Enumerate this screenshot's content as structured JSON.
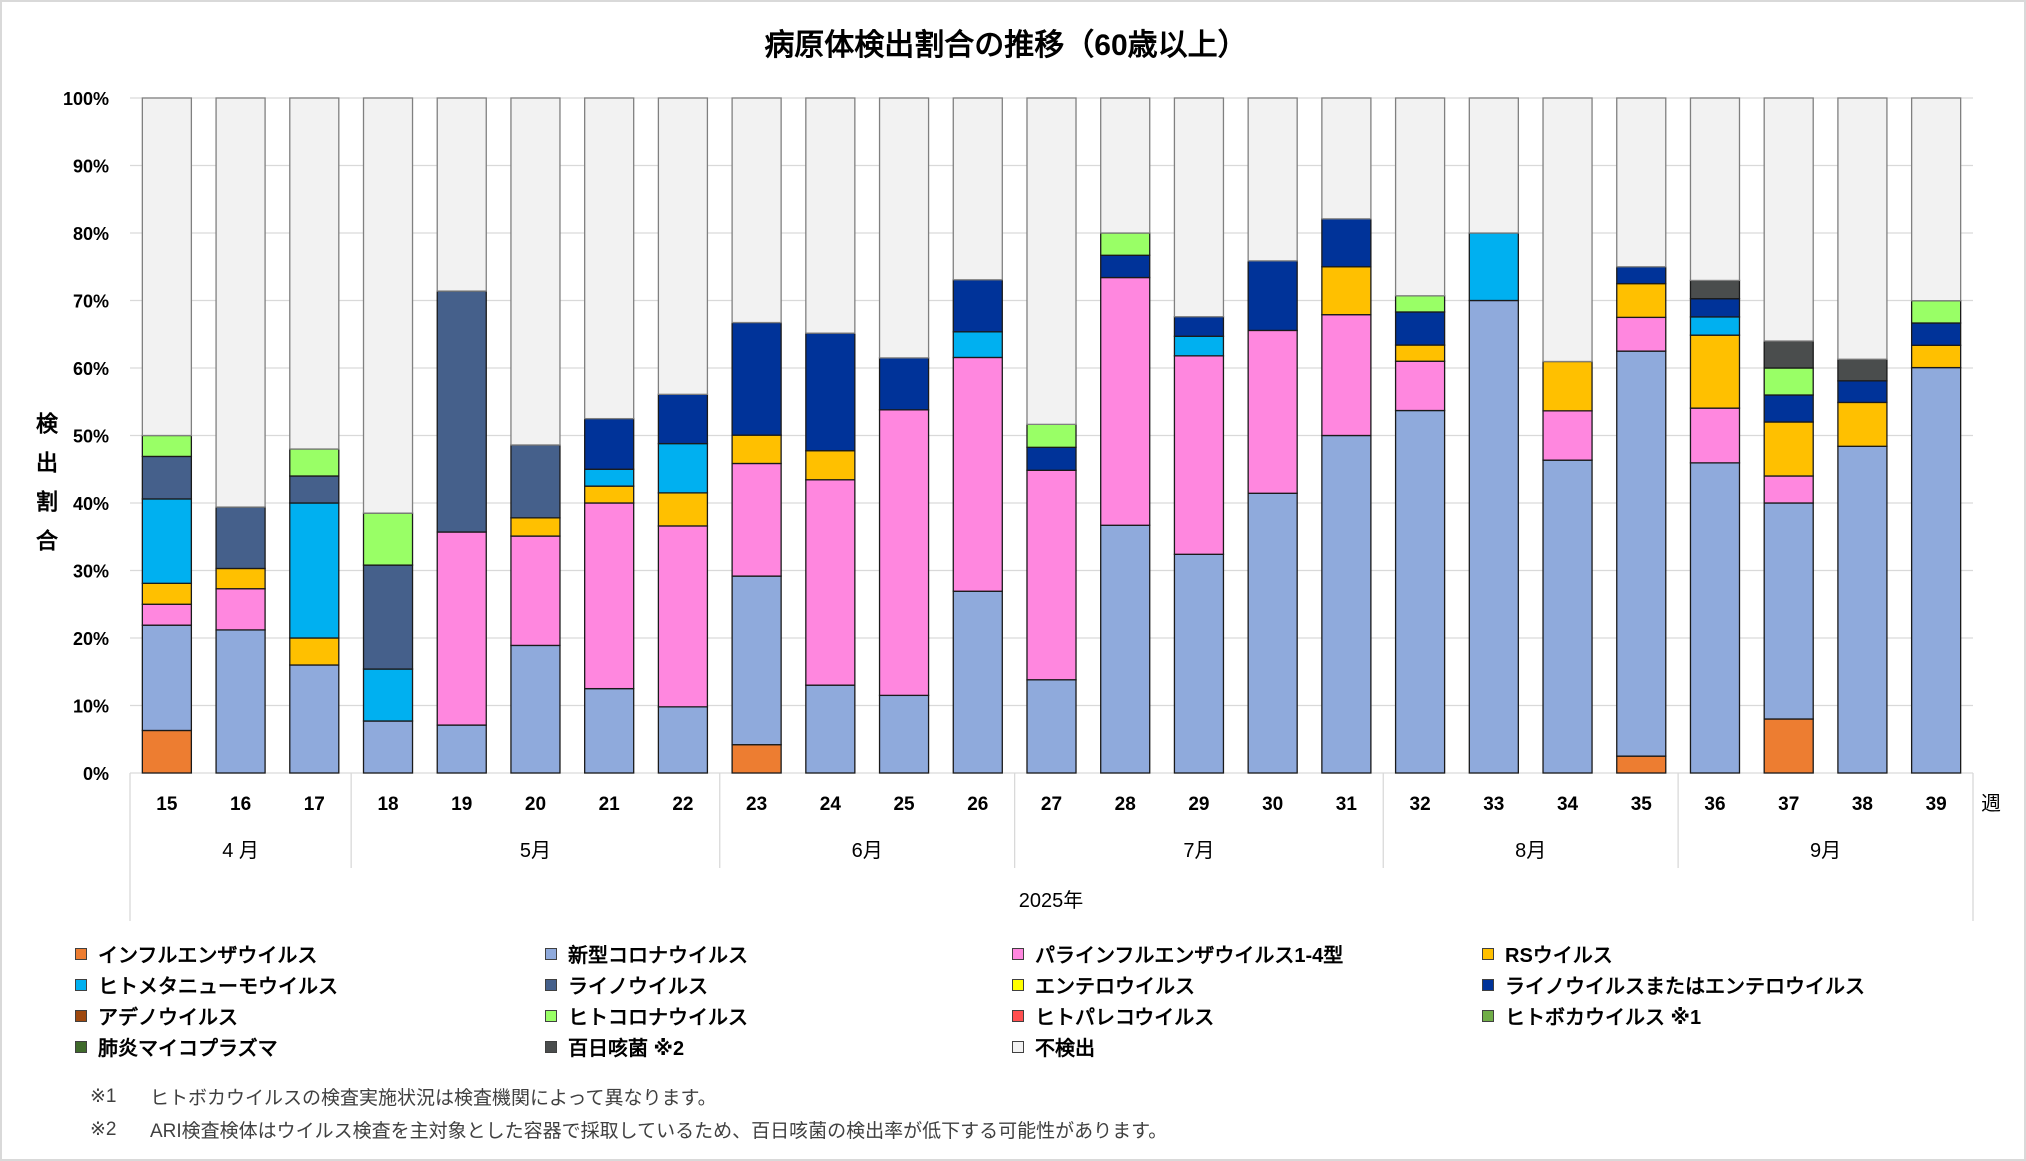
{
  "chart_data": {
    "type": "bar",
    "stacked": true,
    "title": "病原体検出割合の推移（60歳以上）",
    "ylabel": "検出割合",
    "xlabel": "2025年",
    "x_unit_label": "週",
    "ylim": [
      0,
      100
    ],
    "yticks": [
      0,
      10,
      20,
      30,
      40,
      50,
      60,
      70,
      80,
      90,
      100
    ],
    "ytick_labels": [
      "0%",
      "10%",
      "20%",
      "30%",
      "40%",
      "50%",
      "60%",
      "70%",
      "80%",
      "90%",
      "100%"
    ],
    "grid": true,
    "legend_position": "bottom",
    "categories": [
      "15",
      "16",
      "17",
      "18",
      "19",
      "20",
      "21",
      "22",
      "23",
      "24",
      "25",
      "26",
      "27",
      "28",
      "29",
      "30",
      "31",
      "32",
      "33",
      "34",
      "35",
      "36",
      "37",
      "38",
      "39"
    ],
    "month_groups": [
      {
        "label": "4 月",
        "from": "15",
        "to": "17"
      },
      {
        "label": "5月",
        "from": "18",
        "to": "22"
      },
      {
        "label": "6月",
        "from": "23",
        "to": "26"
      },
      {
        "label": "7月",
        "from": "27",
        "to": "31"
      },
      {
        "label": "8月",
        "from": "32",
        "to": "35"
      },
      {
        "label": "9月",
        "from": "36",
        "to": "39"
      }
    ],
    "series": [
      {
        "name": "インフルエンザウイルス",
        "color": "#ED7D31",
        "values": [
          6.3,
          0,
          0,
          0,
          0,
          0,
          0,
          0,
          4.2,
          0,
          0,
          0,
          0,
          0,
          0,
          0,
          0,
          0,
          0,
          0,
          2.5,
          0,
          8.0,
          0,
          0
        ]
      },
      {
        "name": "新型コロナウイルス",
        "color": "#8FAADC",
        "values": [
          15.6,
          21.2,
          16.0,
          7.7,
          7.1,
          18.9,
          12.5,
          9.8,
          25.0,
          13.0,
          11.5,
          26.9,
          13.8,
          36.7,
          32.4,
          41.4,
          50.0,
          53.7,
          70.0,
          46.3,
          60.0,
          45.9,
          32.0,
          48.4,
          60.0
        ]
      },
      {
        "name": "パラインフルエンザウイルス1-4型",
        "color": "#FF87DF",
        "values": [
          3.1,
          6.1,
          0,
          0,
          28.6,
          16.2,
          27.5,
          26.8,
          16.7,
          30.4,
          42.3,
          34.6,
          31.0,
          36.7,
          29.4,
          24.1,
          17.9,
          7.3,
          0,
          7.3,
          5.0,
          8.1,
          4.0,
          0,
          0
        ]
      },
      {
        "name": "RSウイルス",
        "color": "#FFC000",
        "values": [
          3.1,
          3.0,
          4.0,
          0,
          0,
          2.7,
          2.5,
          4.9,
          4.2,
          4.3,
          0,
          0,
          0,
          0,
          0,
          0,
          7.1,
          2.4,
          0,
          7.3,
          5.0,
          10.8,
          8.0,
          6.5,
          3.3
        ]
      },
      {
        "name": "ヒトメタニューモウイルス",
        "color": "#00B0F0",
        "values": [
          12.5,
          0,
          20.0,
          7.7,
          0,
          0,
          2.5,
          7.3,
          0,
          0,
          0,
          3.8,
          0,
          0,
          2.9,
          0,
          0,
          0,
          10.0,
          0,
          0,
          2.7,
          0,
          0,
          0
        ]
      },
      {
        "name": "ライノウイルス",
        "color": "#45608B",
        "values": [
          6.3,
          9.1,
          4.0,
          15.4,
          35.7,
          10.8,
          0,
          0,
          0,
          0,
          0,
          0,
          0,
          0,
          0,
          0,
          0,
          0,
          0,
          0,
          0,
          0,
          0,
          0,
          0
        ]
      },
      {
        "name": "エンテロウイルス",
        "color": "#FFFF00",
        "values": [
          0,
          0,
          0,
          0,
          0,
          0,
          0,
          0,
          0,
          0,
          0,
          0,
          0,
          0,
          0,
          0,
          0,
          0,
          0,
          0,
          0,
          0,
          0,
          0,
          0
        ]
      },
      {
        "name": "ライノウイルスまたはエンテロウイルス",
        "color": "#003399",
        "values": [
          0,
          0,
          0,
          0,
          0,
          0,
          7.5,
          7.3,
          16.7,
          17.4,
          7.7,
          7.7,
          3.4,
          3.3,
          2.9,
          10.3,
          7.1,
          4.9,
          0,
          0,
          2.5,
          2.7,
          4.0,
          3.2,
          3.3
        ]
      },
      {
        "name": "アデノウイルス",
        "color": "#9E480E",
        "values": [
          0,
          0,
          0,
          0,
          0,
          0,
          0,
          0,
          0,
          0,
          0,
          0,
          0,
          0,
          0,
          0,
          0,
          0,
          0,
          0,
          0,
          0,
          0,
          0,
          0
        ]
      },
      {
        "name": "ヒトコロナウイルス",
        "color": "#99FF66",
        "values": [
          3.1,
          0,
          4.0,
          7.7,
          0,
          0,
          0,
          0,
          0,
          0,
          0,
          0,
          3.4,
          3.3,
          0,
          0,
          0,
          2.4,
          0,
          0,
          0,
          0,
          4.0,
          0,
          3.3
        ]
      },
      {
        "name": "ヒトパレコウイルス",
        "color": "#FF4F4F",
        "values": [
          0,
          0,
          0,
          0,
          0,
          0,
          0,
          0,
          0,
          0,
          0,
          0,
          0,
          0,
          0,
          0,
          0,
          0,
          0,
          0,
          0,
          0,
          0,
          0,
          0
        ]
      },
      {
        "name": "ヒトボカウイルス ※1",
        "color": "#70AD47",
        "values": [
          0,
          0,
          0,
          0,
          0,
          0,
          0,
          0,
          0,
          0,
          0,
          0,
          0,
          0,
          0,
          0,
          0,
          0,
          0,
          0,
          0,
          0,
          0,
          0,
          0
        ]
      },
      {
        "name": "肺炎マイコプラズマ",
        "color": "#3F6A2B",
        "values": [
          0,
          0,
          0,
          0,
          0,
          0,
          0,
          0,
          0,
          0,
          0,
          0,
          0,
          0,
          0,
          0,
          0,
          0,
          0,
          0,
          0,
          0,
          0,
          0,
          0
        ]
      },
      {
        "name": "百日咳菌 ※2",
        "color": "#4A4D4D",
        "values": [
          0,
          0,
          0,
          0,
          0,
          0,
          0,
          0,
          0,
          0,
          0,
          0,
          0,
          0,
          0,
          0,
          0,
          0,
          0,
          0,
          0,
          2.7,
          4.0,
          3.2,
          0
        ]
      },
      {
        "name": "不検出",
        "color": "#F2F2F2",
        "values": [
          50.0,
          60.6,
          52.0,
          61.5,
          28.6,
          51.4,
          47.5,
          43.9,
          33.3,
          34.8,
          38.5,
          26.9,
          48.3,
          20.0,
          32.4,
          24.1,
          17.9,
          29.3,
          20.0,
          39.0,
          25.0,
          27.0,
          36.0,
          38.7,
          30.0
        ]
      }
    ]
  },
  "footnotes": [
    {
      "marker": "※1",
      "text": "ヒトボカウイルスの検査実施状況は検査機関によって異なります。"
    },
    {
      "marker": "※2",
      "text": "ARI検査検体はウイルス検査を主対象とした容器で採取しているため、百日咳菌の検出率が低下する可能性があります。"
    }
  ]
}
